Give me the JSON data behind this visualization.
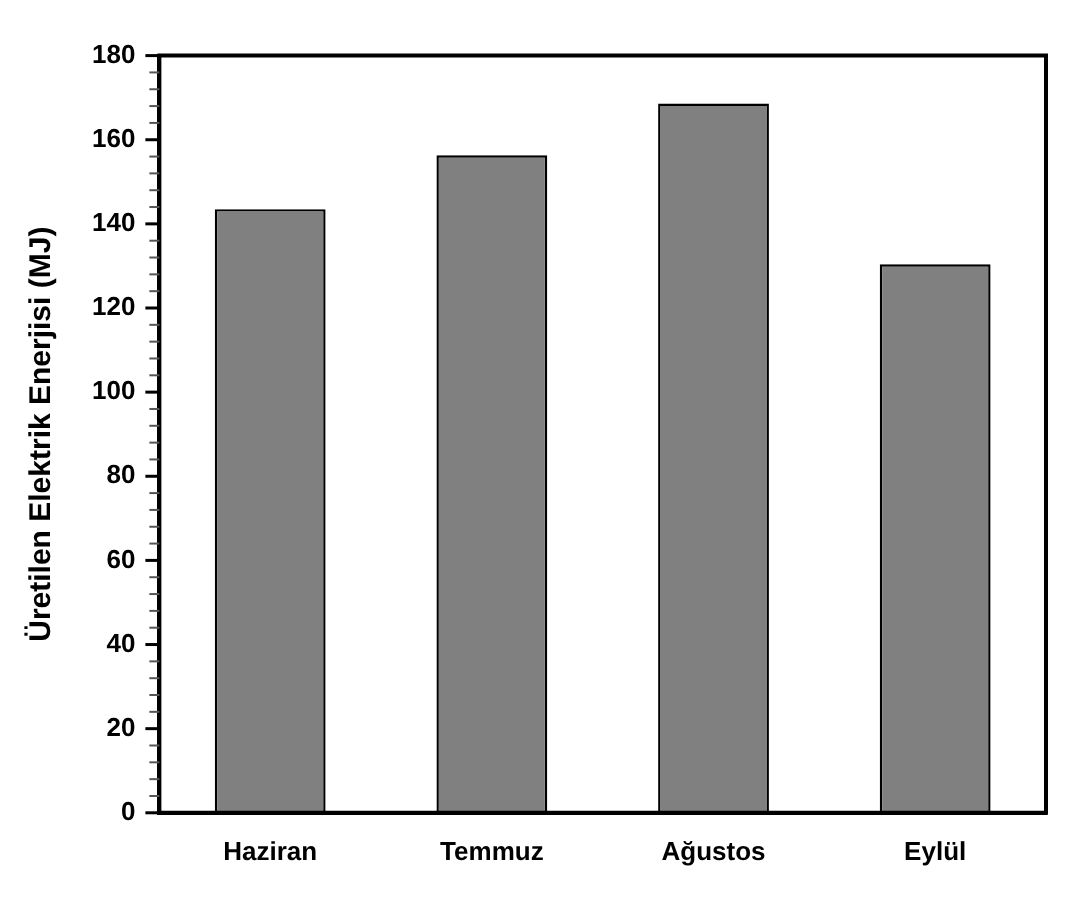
{
  "chart_data": {
    "type": "bar",
    "ylabel": "Üretilen Elektrik Enerjisi (MJ)",
    "categories": [
      "Haziran",
      "Temmuz",
      "Ağustos",
      "Eylül"
    ],
    "values": [
      143.5,
      156.3,
      168.6,
      130.4
    ],
    "color": "#808080",
    "ylim": [
      0,
      180
    ],
    "yticks": [
      0,
      {
        "value": 4,
        "label": null
      },
      {
        "value": 8,
        "label": null
      },
      {
        "value": 12,
        "label": null
      },
      {
        "value": 16,
        "label": null
      },
      20,
      {
        "value": 24,
        "label": null
      },
      {
        "value": 28,
        "label": null
      },
      {
        "value": 32,
        "label": null
      },
      {
        "value": 36,
        "label": null
      },
      40,
      {
        "value": 44,
        "label": null
      },
      {
        "value": 48,
        "label": null
      },
      {
        "value": 52,
        "label": null
      },
      {
        "value": 56,
        "label": null
      },
      60,
      {
        "value": 64,
        "label": null
      },
      {
        "value": 68,
        "label": null
      },
      {
        "value": 72,
        "label": null
      },
      {
        "value": 76,
        "label": null
      },
      80,
      {
        "value": 84,
        "label": null
      },
      {
        "value": 88,
        "label": null
      },
      {
        "value": 92,
        "label": null
      },
      {
        "value": 96,
        "label": null
      },
      100,
      {
        "value": 104,
        "label": null
      },
      {
        "value": 108,
        "label": null
      },
      {
        "value": 112,
        "label": null
      },
      {
        "value": 116,
        "label": null
      },
      120,
      {
        "value": 124,
        "label": null
      },
      {
        "value": 128,
        "label": null
      },
      {
        "value": 132,
        "label": null
      },
      {
        "value": 136,
        "label": null
      },
      140,
      {
        "value": 144,
        "label": null
      },
      {
        "value": 148,
        "label": null
      },
      {
        "value": 152,
        "label": null
      },
      {
        "value": 156,
        "label": null
      },
      160,
      {
        "value": 164,
        "label": null
      },
      {
        "value": 168,
        "label": null
      },
      {
        "value": 172,
        "label": null
      },
      {
        "value": 176,
        "label": null
      },
      180
    ],
    "grid": false,
    "legend": false
  }
}
